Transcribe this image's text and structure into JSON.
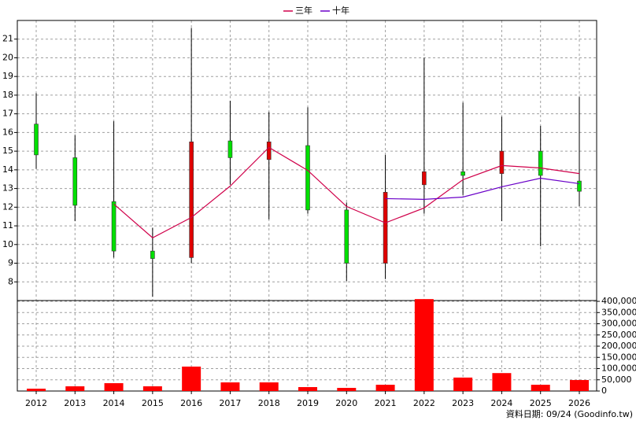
{
  "chart_data": {
    "type": "candlestick",
    "categories": [
      "2012",
      "2013",
      "2014",
      "2015",
      "2016",
      "2017",
      "2018",
      "2019",
      "2020",
      "2021",
      "2022",
      "2023",
      "2024",
      "2025",
      "2026"
    ],
    "open": [
      16.45,
      14.65,
      12.3,
      9.65,
      9.3,
      15.55,
      14.55,
      15.3,
      11.85,
      9.0,
      13.2,
      13.9,
      13.8,
      15.0,
      13.4
    ],
    "high": [
      18.1,
      15.85,
      16.6,
      10.9,
      21.6,
      17.7,
      17.1,
      17.35,
      12.25,
      14.8,
      20.0,
      17.6,
      16.85,
      16.35,
      17.9
    ],
    "low": [
      14.05,
      11.25,
      9.3,
      7.2,
      9.0,
      13.2,
      11.35,
      11.65,
      8.05,
      8.15,
      11.65,
      12.65,
      11.25,
      9.9,
      12.05
    ],
    "close": [
      14.8,
      12.1,
      9.65,
      9.25,
      15.5,
      14.65,
      15.5,
      11.85,
      9.0,
      12.8,
      13.9,
      13.7,
      15.0,
      13.7,
      12.85
    ],
    "up_color": "#e00000",
    "down_color": "#00e000",
    "ylim": [
      7,
      22
    ],
    "yticks": [
      8,
      9,
      10,
      11,
      12,
      13,
      14,
      15,
      16,
      17,
      18,
      19,
      20,
      21
    ],
    "grid": true,
    "series": [
      {
        "name": "三年",
        "color": "#d0004a",
        "values": [
          null,
          null,
          12.17,
          10.36,
          11.45,
          13.13,
          15.2,
          13.97,
          12.04,
          11.16,
          11.96,
          13.47,
          14.23,
          14.1,
          13.8
        ]
      },
      {
        "name": "十年",
        "color": "#6a00c8",
        "values": [
          null,
          null,
          null,
          null,
          null,
          null,
          null,
          null,
          null,
          12.46,
          12.42,
          12.54,
          13.09,
          13.55,
          13.26
        ]
      }
    ],
    "volume": {
      "color": "#ff0000",
      "values": [
        10500,
        21000,
        35000,
        21000,
        109000,
        38500,
        38500,
        17500,
        14000,
        28000,
        410000,
        60000,
        80000,
        28000,
        49000
      ],
      "ylim": [
        0,
        400000
      ],
      "yticks": [
        0,
        {
          "value": 50000,
          "label": "50,000"
        },
        {
          "value": 100000,
          "label": "100,000"
        },
        {
          "value": 150000,
          "label": "150,000"
        },
        {
          "value": 200000,
          "label": "200,000"
        },
        {
          "value": 250000,
          "label": "250,000"
        },
        {
          "value": 300000,
          "label": "300,000"
        },
        {
          "value": 350000,
          "label": "350,000"
        },
        {
          "value": 400000,
          "label": "400,000"
        }
      ]
    },
    "footnote": "資料日期: 09/24  (Goodinfo.tw)"
  }
}
